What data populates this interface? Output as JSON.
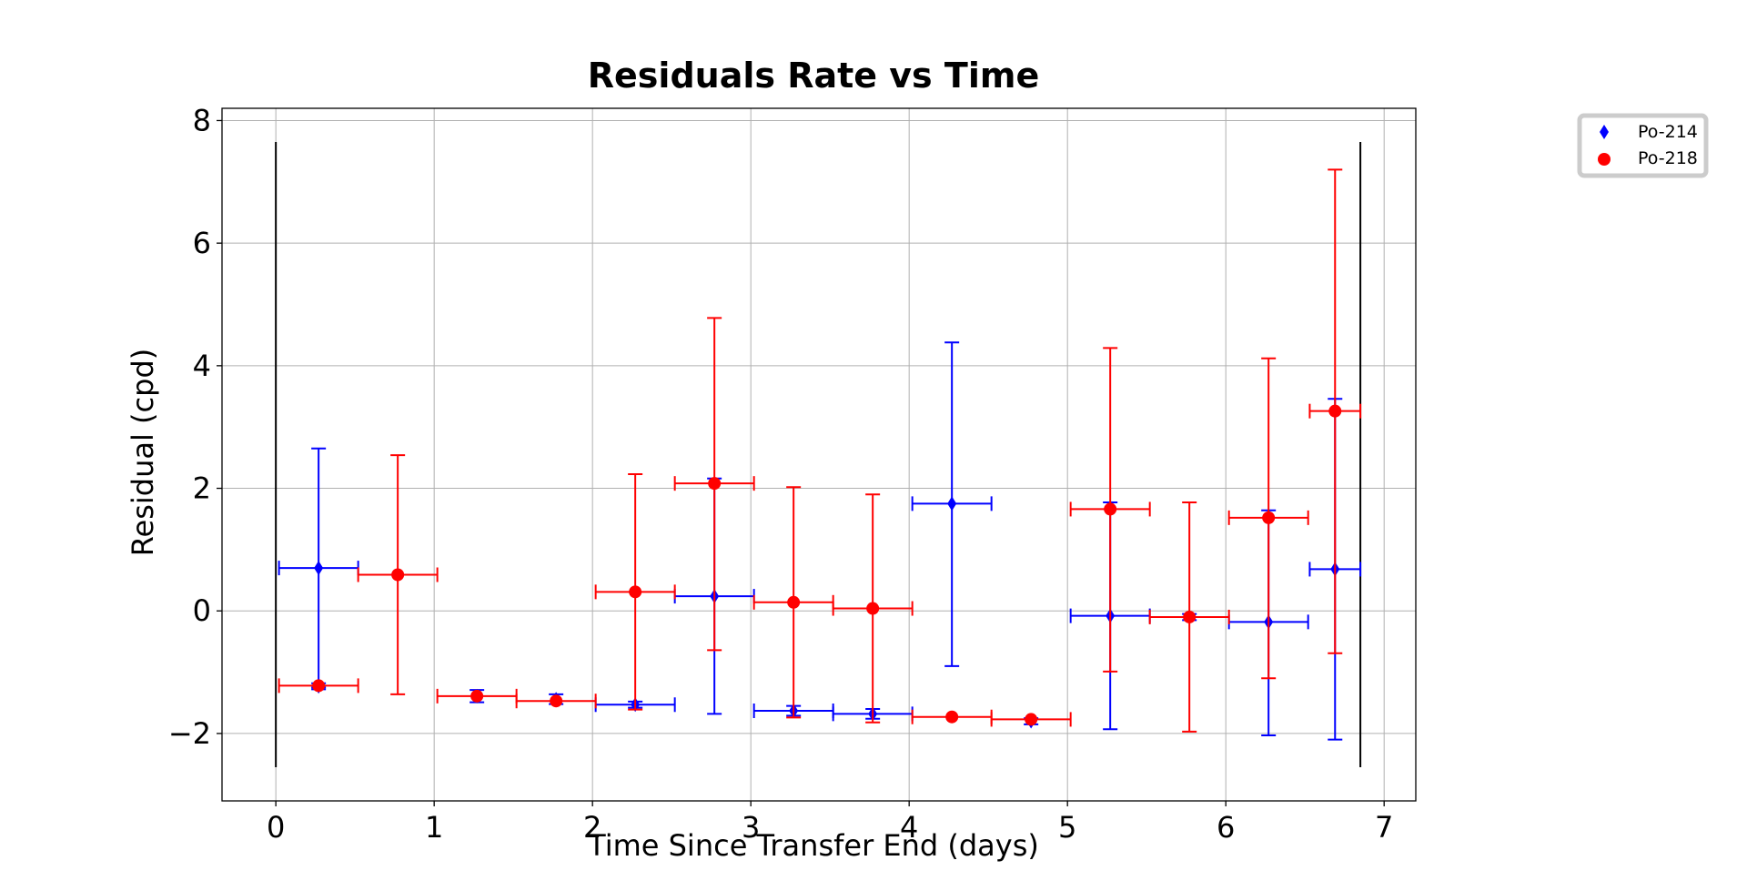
{
  "chart_data": {
    "type": "scatter",
    "title": "Residuals Rate vs Time",
    "xlabel": "Time Since Transfer End (days)",
    "ylabel": "Residual (cpd)",
    "xlim": [
      -0.34,
      7.2
    ],
    "ylim": [
      -3.1,
      8.2
    ],
    "xticks": [
      0,
      1,
      2,
      3,
      4,
      5,
      6,
      7
    ],
    "yticks": [
      -2,
      0,
      2,
      4,
      6,
      8
    ],
    "xtick_labels": [
      "0",
      "1",
      "2",
      "3",
      "4",
      "5",
      "6",
      "7"
    ],
    "ytick_labels": [
      "−2",
      "0",
      "2",
      "4",
      "6",
      "8"
    ],
    "grid": true,
    "legend_position": "outside-top-right",
    "vertical_lines": [
      {
        "x": 0.0,
        "ymin": -2.55,
        "ymax": 7.65,
        "color": "#000000"
      },
      {
        "x": 6.85,
        "ymin": -2.55,
        "ymax": 7.65,
        "color": "#000000"
      }
    ],
    "series": [
      {
        "name": "Po-214",
        "color": "#0000ff",
        "marker": "diamond",
        "points": [
          {
            "x": 0.27,
            "y": 0.7,
            "xerr": 0.25,
            "yerr_low": 1.95,
            "yerr_high": 1.95
          },
          {
            "x": 0.27,
            "y": -1.23,
            "xerr": 0.0,
            "yerr_low": 0.05,
            "yerr_high": 0.05
          },
          {
            "x": 1.27,
            "y": -1.39,
            "xerr": 0.0,
            "yerr_low": 0.1,
            "yerr_high": 0.1
          },
          {
            "x": 1.77,
            "y": -1.44,
            "xerr": 0.0,
            "yerr_low": 0.08,
            "yerr_high": 0.08
          },
          {
            "x": 2.27,
            "y": -1.53,
            "xerr": 0.25,
            "yerr_low": 0.05,
            "yerr_high": 0.05
          },
          {
            "x": 2.77,
            "y": 0.24,
            "xerr": 0.25,
            "yerr_low": 1.92,
            "yerr_high": 1.92
          },
          {
            "x": 3.27,
            "y": -1.63,
            "xerr": 0.25,
            "yerr_low": 0.08,
            "yerr_high": 0.08
          },
          {
            "x": 3.77,
            "y": -1.68,
            "xerr": 0.25,
            "yerr_low": 0.08,
            "yerr_high": 0.08
          },
          {
            "x": 4.27,
            "y": 1.75,
            "xerr": 0.25,
            "yerr_low": 2.65,
            "yerr_high": 2.63
          },
          {
            "x": 4.77,
            "y": -1.8,
            "xerr": 0.0,
            "yerr_low": 0.05,
            "yerr_high": 0.05
          },
          {
            "x": 5.27,
            "y": -0.08,
            "xerr": 0.25,
            "yerr_low": 1.85,
            "yerr_high": 1.85
          },
          {
            "x": 5.77,
            "y": -0.1,
            "xerr": 0.0,
            "yerr_low": 0.05,
            "yerr_high": 0.05
          },
          {
            "x": 6.27,
            "y": -0.18,
            "xerr": 0.25,
            "yerr_low": 1.85,
            "yerr_high": 1.82
          },
          {
            "x": 6.69,
            "y": 0.68,
            "xerr": 0.16,
            "yerr_low": 2.78,
            "yerr_high": 2.78
          }
        ]
      },
      {
        "name": "Po-218",
        "color": "#ff0000",
        "marker": "circle",
        "points": [
          {
            "x": 0.27,
            "y": -1.22,
            "xerr": 0.25,
            "yerr_low": 0.0,
            "yerr_high": 0.0
          },
          {
            "x": 0.77,
            "y": 0.59,
            "xerr": 0.25,
            "yerr_low": 1.95,
            "yerr_high": 1.95
          },
          {
            "x": 1.27,
            "y": -1.39,
            "xerr": 0.25,
            "yerr_low": 0.0,
            "yerr_high": 0.0
          },
          {
            "x": 1.77,
            "y": -1.47,
            "xerr": 0.25,
            "yerr_low": 0.0,
            "yerr_high": 0.0
          },
          {
            "x": 2.27,
            "y": 0.31,
            "xerr": 0.25,
            "yerr_low": 1.92,
            "yerr_high": 1.92
          },
          {
            "x": 2.77,
            "y": 2.08,
            "xerr": 0.25,
            "yerr_low": 2.72,
            "yerr_high": 2.7
          },
          {
            "x": 3.27,
            "y": 0.14,
            "xerr": 0.25,
            "yerr_low": 1.88,
            "yerr_high": 1.88
          },
          {
            "x": 3.77,
            "y": 0.04,
            "xerr": 0.25,
            "yerr_low": 1.86,
            "yerr_high": 1.86
          },
          {
            "x": 4.27,
            "y": -1.73,
            "xerr": 0.25,
            "yerr_low": 0.0,
            "yerr_high": 0.0
          },
          {
            "x": 4.77,
            "y": -1.77,
            "xerr": 0.25,
            "yerr_low": 0.0,
            "yerr_high": 0.0
          },
          {
            "x": 5.27,
            "y": 1.66,
            "xerr": 0.25,
            "yerr_low": 2.65,
            "yerr_high": 2.63
          },
          {
            "x": 5.77,
            "y": -0.1,
            "xerr": 0.25,
            "yerr_low": 1.87,
            "yerr_high": 1.87
          },
          {
            "x": 6.27,
            "y": 1.52,
            "xerr": 0.25,
            "yerr_low": 2.62,
            "yerr_high": 2.6
          },
          {
            "x": 6.69,
            "y": 3.26,
            "xerr": 0.16,
            "yerr_low": 3.95,
            "yerr_high": 3.94
          }
        ]
      }
    ]
  }
}
